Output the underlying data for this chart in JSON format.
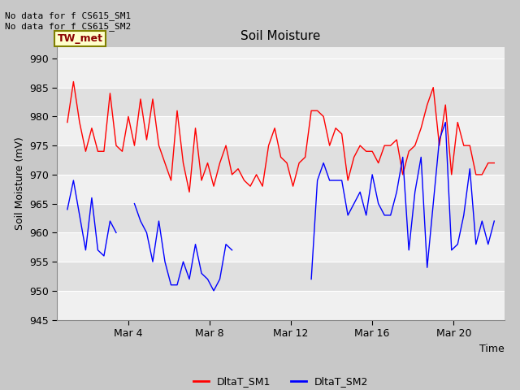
{
  "title": "Soil Moisture",
  "ylabel": "Soil Moisture (mV)",
  "xlabel": "Time",
  "ylim": [
    945,
    992
  ],
  "yticks": [
    945,
    950,
    955,
    960,
    965,
    970,
    975,
    980,
    985,
    990
  ],
  "annotation_top": "No data for f CS615_SM1\nNo data for f CS615_SM2",
  "box_label": "TW_met",
  "legend_entries": [
    "DltaT_SM1",
    "DltaT_SM2"
  ],
  "line_colors": [
    "red",
    "blue"
  ],
  "fig_bg_color": "#c8c8c8",
  "plot_bg_color": "#f0f0f0",
  "band_colors": [
    "#e8e8e8",
    "#d8d8d8"
  ],
  "xtick_labels": [
    "Mar 4",
    "Mar 8",
    "Mar 12",
    "Mar 16",
    "Mar 20"
  ],
  "xtick_positions": [
    3,
    7,
    11,
    15,
    19
  ],
  "sm1_x": [
    0,
    0.3,
    0.6,
    0.9,
    1.2,
    1.5,
    1.8,
    2.1,
    2.4,
    2.7,
    3.0,
    3.3,
    3.6,
    3.9,
    4.2,
    4.5,
    4.8,
    5.1,
    5.4,
    5.7,
    6.0,
    6.3,
    6.6,
    6.9,
    7.2,
    7.5,
    7.8,
    8.1,
    8.4,
    8.7,
    9.0,
    9.3,
    9.6,
    9.9,
    10.2,
    10.5,
    10.8,
    11.1,
    11.4,
    11.7,
    12.0,
    12.3,
    12.6,
    12.9,
    13.2,
    13.5,
    13.8,
    14.1,
    14.4,
    14.7,
    15.0,
    15.3,
    15.6,
    15.9,
    16.2,
    16.5,
    16.8,
    17.1,
    17.4,
    17.7,
    18.0,
    18.3,
    18.6,
    18.9,
    19.2,
    19.5,
    19.8,
    20.1,
    20.4,
    20.7,
    21.0
  ],
  "sm1_y": [
    979,
    986,
    979,
    974,
    978,
    974,
    974,
    984,
    975,
    974,
    980,
    975,
    983,
    976,
    983,
    975,
    972,
    969,
    981,
    972,
    967,
    978,
    969,
    972,
    968,
    972,
    975,
    970,
    971,
    969,
    968,
    970,
    968,
    975,
    978,
    973,
    972,
    968,
    972,
    973,
    981,
    981,
    980,
    975,
    978,
    977,
    969,
    973,
    975,
    974,
    974,
    972,
    975,
    975,
    976,
    970,
    974,
    975,
    978,
    982,
    985,
    975,
    982,
    970,
    979,
    975,
    975,
    970,
    970,
    972,
    972
  ],
  "sm2_x": [
    0,
    0.3,
    0.6,
    0.9,
    1.2,
    1.5,
    1.8,
    2.1,
    2.4,
    2.7,
    3.0,
    3.3,
    3.6,
    3.9,
    4.2,
    4.5,
    4.8,
    5.1,
    5.4,
    5.7,
    6.0,
    6.3,
    6.6,
    6.9,
    7.2,
    7.5,
    7.8,
    8.1,
    8.4,
    8.7,
    9.0,
    9.3,
    9.6,
    9.9,
    10.2,
    10.5,
    10.8,
    11.1,
    11.4,
    11.7,
    12.0,
    12.3,
    12.6,
    12.9,
    13.2,
    13.5,
    13.8,
    14.1,
    14.4,
    14.7,
    15.0,
    15.3,
    15.6,
    15.9,
    16.2,
    16.5,
    16.8,
    17.1,
    17.4,
    17.7,
    18.0,
    18.3,
    18.6,
    18.9,
    19.2,
    19.5,
    19.8,
    20.1,
    20.4,
    20.7,
    21.0
  ],
  "sm2_y": [
    964,
    969,
    963,
    957,
    966,
    957,
    956,
    962,
    960,
    null,
    null,
    965,
    962,
    960,
    955,
    962,
    955,
    951,
    951,
    955,
    952,
    958,
    953,
    952,
    950,
    952,
    958,
    957,
    null,
    null,
    null,
    null,
    null,
    null,
    null,
    null,
    null,
    null,
    null,
    null,
    952,
    969,
    972,
    969,
    969,
    969,
    963,
    965,
    967,
    963,
    970,
    965,
    963,
    963,
    967,
    973,
    957,
    967,
    973,
    954,
    965,
    976,
    979,
    957,
    958,
    963,
    971,
    958,
    962,
    958,
    962
  ]
}
